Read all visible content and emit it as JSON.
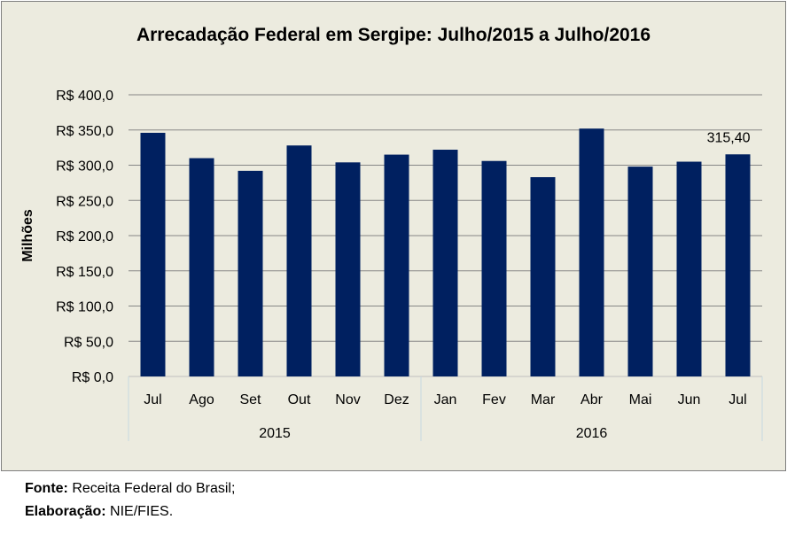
{
  "chart_data": {
    "type": "bar",
    "title": "Arrecadação Federal em Sergipe: Julho/2015 a Julho/2016",
    "ylabel": "Milhões",
    "xlabel": "",
    "categories": [
      "Jul",
      "Ago",
      "Set",
      "Out",
      "Nov",
      "Dez",
      "Jan",
      "Fev",
      "Mar",
      "Abr",
      "Mai",
      "Jun",
      "Jul"
    ],
    "groups": [
      {
        "label": "2015",
        "count": 6
      },
      {
        "label": "2016",
        "count": 7
      }
    ],
    "values": [
      346,
      310,
      292,
      328,
      304,
      315,
      322,
      306,
      283,
      352,
      298,
      305,
      315.4
    ],
    "data_labels": [
      {
        "index": 12,
        "text": "315,40"
      }
    ],
    "ylim": [
      0,
      400
    ],
    "yticks": [
      "R$ 0,0",
      "R$ 50,0",
      "R$ 100,0",
      "R$ 150,0",
      "R$ 200,0",
      "R$ 250,0",
      "R$ 300,0",
      "R$ 350,0",
      "R$ 400,0"
    ],
    "grid": true,
    "bar_color": "#002060"
  },
  "footer": {
    "source_label": "Fonte:",
    "source_text": " Receita Federal do Brasil;",
    "elab_label": "Elaboração:",
    "elab_text": " NIE/FIES."
  }
}
